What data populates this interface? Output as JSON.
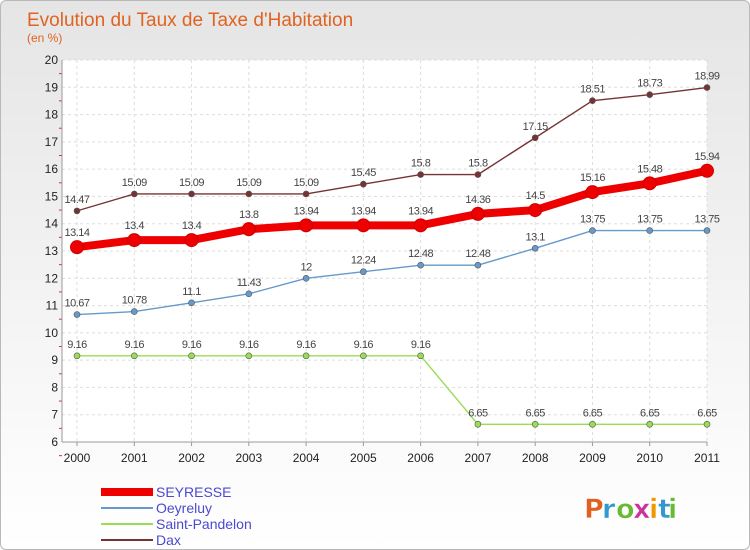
{
  "chart_data": {
    "type": "line",
    "title": "Evolution du Taux de Taxe d'Habitation",
    "subtitle": "(en %)",
    "x": [
      "2000",
      "2001",
      "2002",
      "2003",
      "2004",
      "2005",
      "2006",
      "2007",
      "2008",
      "2009",
      "2010",
      "2011"
    ],
    "ylim": [
      6,
      20
    ],
    "yticks": [
      "6",
      "7",
      "8",
      "9",
      "10",
      "11",
      "12",
      "13",
      "14",
      "15",
      "16",
      "17",
      "18",
      "19",
      "20"
    ],
    "grid": true,
    "legend_position": "bottom-left",
    "series": [
      {
        "name": "SEYRESSE",
        "color": "#ee0000",
        "values": [
          13.14,
          13.4,
          13.4,
          13.8,
          13.94,
          13.94,
          13.94,
          14.36,
          14.5,
          15.16,
          15.48,
          15.94
        ],
        "labels": [
          "13.14",
          "13.4",
          "13.4",
          "13.8",
          "13.94",
          "13.94",
          "13.94",
          "14.36",
          "14.5",
          "15.16",
          "15.48",
          "15.94"
        ]
      },
      {
        "name": "Oeyreluy",
        "color": "#6699cc",
        "values": [
          10.67,
          10.78,
          11.1,
          11.43,
          12,
          12.24,
          12.48,
          12.48,
          13.1,
          13.75,
          13.75,
          13.75
        ],
        "labels": [
          "10.67",
          "10.78",
          "11.1",
          "11.43",
          "12",
          "12.24",
          "12.48",
          "12.48",
          "13.1",
          "13.75",
          "13.75",
          "13.75"
        ]
      },
      {
        "name": "Saint-Pandelon",
        "color": "#99dd55",
        "values": [
          9.16,
          9.16,
          9.16,
          9.16,
          9.16,
          9.16,
          9.16,
          6.65,
          6.65,
          6.65,
          6.65,
          6.65
        ],
        "labels": [
          "9.16",
          "9.16",
          "9.16",
          "9.16",
          "9.16",
          "9.16",
          "9.16",
          "6.65",
          "6.65",
          "6.65",
          "6.65",
          "6.65"
        ]
      },
      {
        "name": "Dax",
        "color": "#773333",
        "values": [
          14.47,
          15.09,
          15.09,
          15.09,
          15.09,
          15.45,
          15.8,
          15.8,
          17.15,
          18.51,
          18.73,
          18.99
        ],
        "labels": [
          "14.47",
          "15.09",
          "15.09",
          "15.09",
          "15.09",
          "15.45",
          "15.8",
          "15.8",
          "17.15",
          "18.51",
          "18.73",
          "18.99"
        ]
      }
    ]
  },
  "branding": {
    "logo_text": "Proxiti",
    "logo_colors": [
      "#e06020",
      "#3399cc",
      "#66bb33",
      "#cc3399",
      "#ee9900",
      "#3399cc",
      "#66bb33"
    ]
  }
}
